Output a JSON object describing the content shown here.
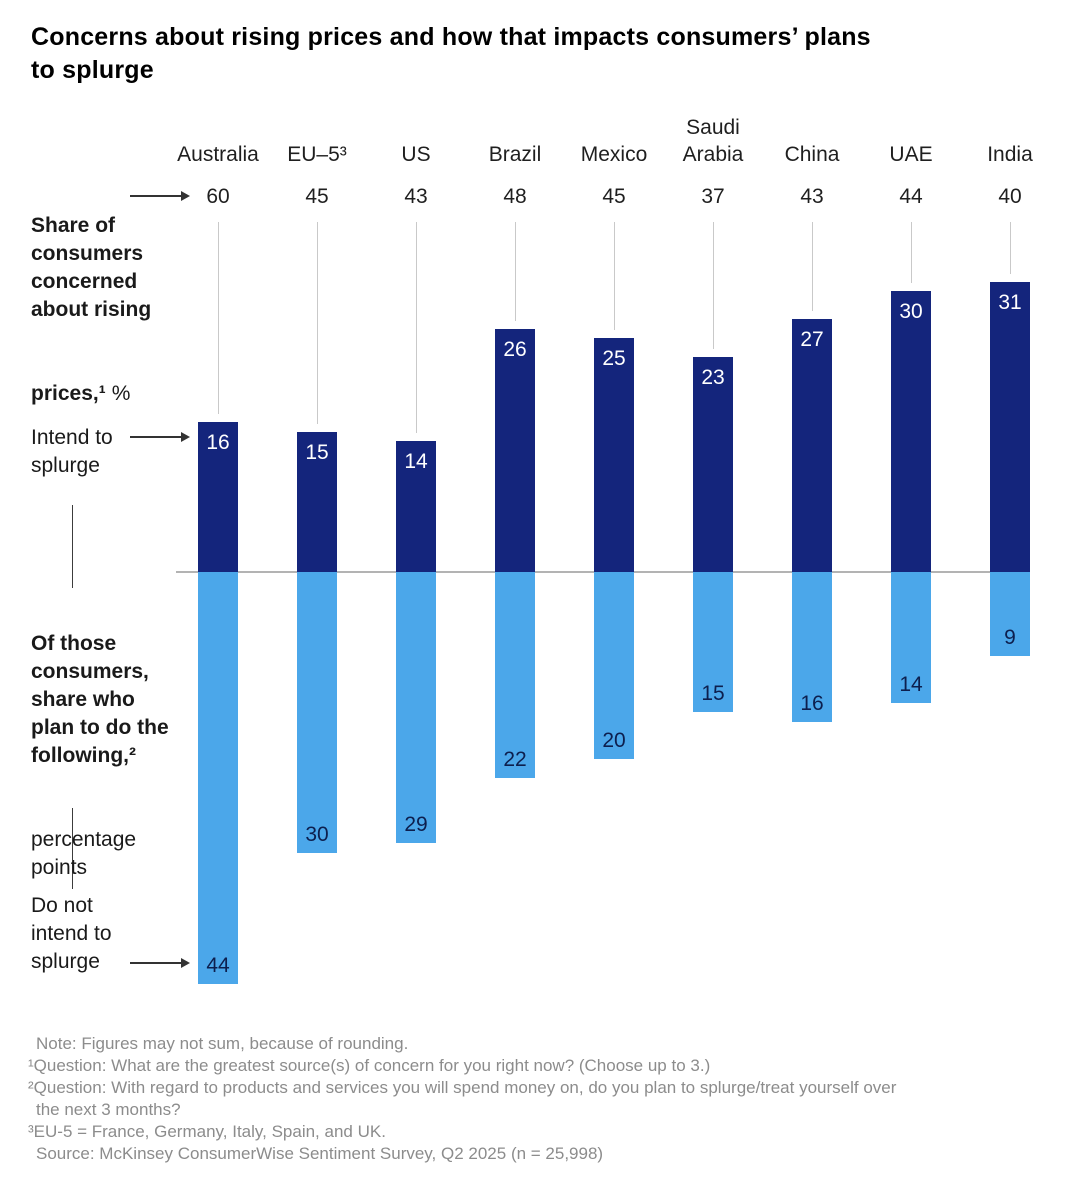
{
  "title": {
    "line1": "Concerns about rising prices and how that impacts consumers’ plans",
    "line2": "to splurge"
  },
  "annotations": {
    "share_bold_lines": "Share of\nconsumers\nconcerned\nabout rising",
    "share_last_bold": "prices,¹",
    "share_unit": "%",
    "intend": "Intend to\nsplurge",
    "plan_bold": "Of those\nconsumers,\nshare who\nplan to do the\nfollowing,²",
    "plan_regular": "percentage\npoints",
    "donot": "Do not\nintend to\nsplurge"
  },
  "chart_data": {
    "type": "bar",
    "orientation": "diverging-vertical",
    "title": "Concerns about rising prices and how that impacts consumers’ plans to splurge",
    "categories": [
      "Australia",
      "EU–5³",
      "US",
      "Brazil",
      "Mexico",
      "Saudi\nArabia",
      "China",
      "UAE",
      "India"
    ],
    "series": [
      {
        "name": "Share of consumers concerned about rising prices,¹ %",
        "role": "column-top-value",
        "values": [
          60,
          45,
          43,
          48,
          45,
          37,
          43,
          44,
          40
        ]
      },
      {
        "name": "Intend to splurge",
        "role": "bar-above-baseline",
        "color": "#14257C",
        "values": [
          16,
          15,
          14,
          26,
          25,
          23,
          27,
          30,
          31
        ]
      },
      {
        "name": "Do not intend to splurge",
        "role": "bar-below-baseline",
        "color": "#4BA7EA",
        "values": [
          44,
          30,
          29,
          22,
          20,
          15,
          16,
          14,
          9
        ]
      }
    ],
    "unit_above": "%",
    "unit_below": "percentage points",
    "grid": false,
    "legend_position": "left-annotations",
    "baseline_color": "#B3B3B3",
    "leader_line_color": "#C9C9C9",
    "bar_label_color_on_dark": "#FFFFFF",
    "bar_label_color_on_light": "#0D1F4E"
  },
  "footnotes": [
    {
      "text": "Note: Figures may not sum, because of rounding.",
      "indent": true
    },
    {
      "text": "¹Question: What are the greatest source(s) of concern for you right now? (Choose up to 3.)",
      "indent": false
    },
    {
      "text": "²Question: With regard to products and services you will spend money on, do you plan to splurge/treat yourself over",
      "indent": false
    },
    {
      "text": "the next 3 months?",
      "indent": true
    },
    {
      "text": "³EU-5 = France, Germany, Italy, Spain, and UK.",
      "indent": false
    },
    {
      "text": "Source: McKinsey ConsumerWise Sentiment Survey, Q2 2025 (n = 25,998)",
      "indent": true
    }
  ]
}
